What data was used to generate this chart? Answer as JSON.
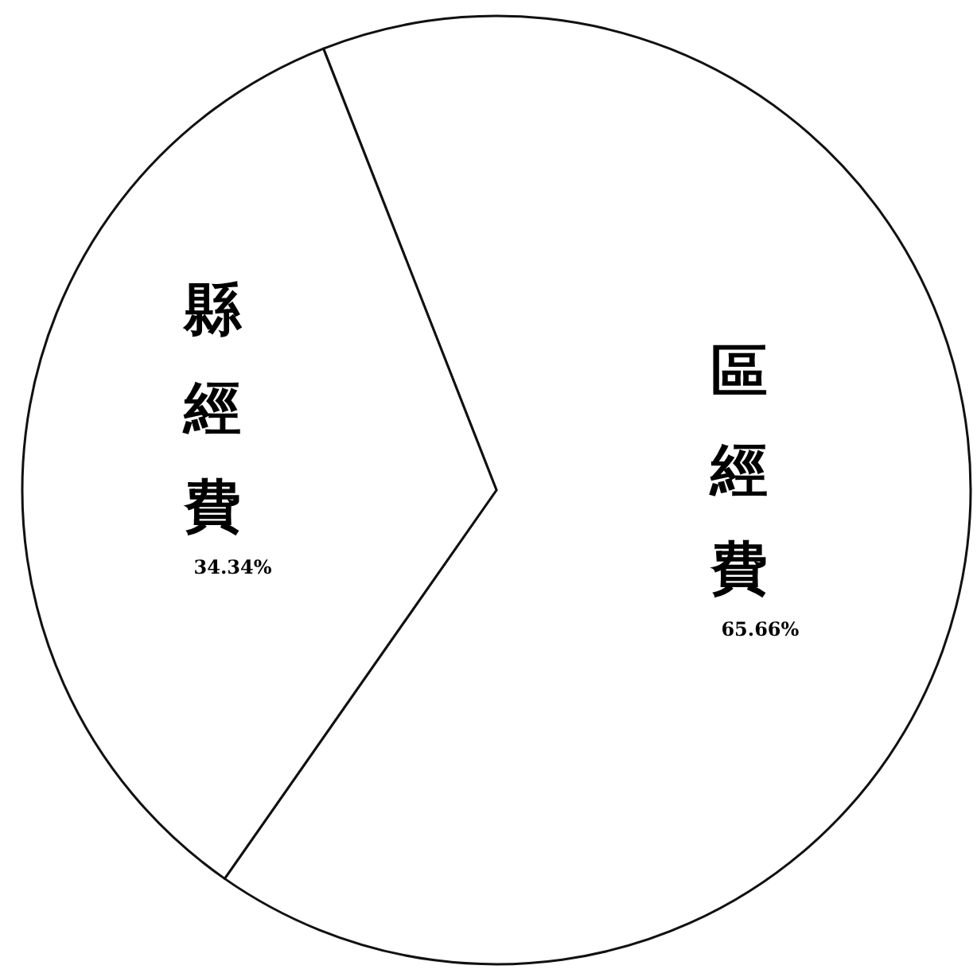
{
  "chart_data": {
    "type": "pie",
    "categories": [
      "區經費",
      "縣經費"
    ],
    "values": [
      65.66,
      34.34
    ],
    "colors": [
      "#ffffff",
      "#ffffff"
    ],
    "value_labels": [
      "65.66%",
      "34.34%"
    ]
  }
}
